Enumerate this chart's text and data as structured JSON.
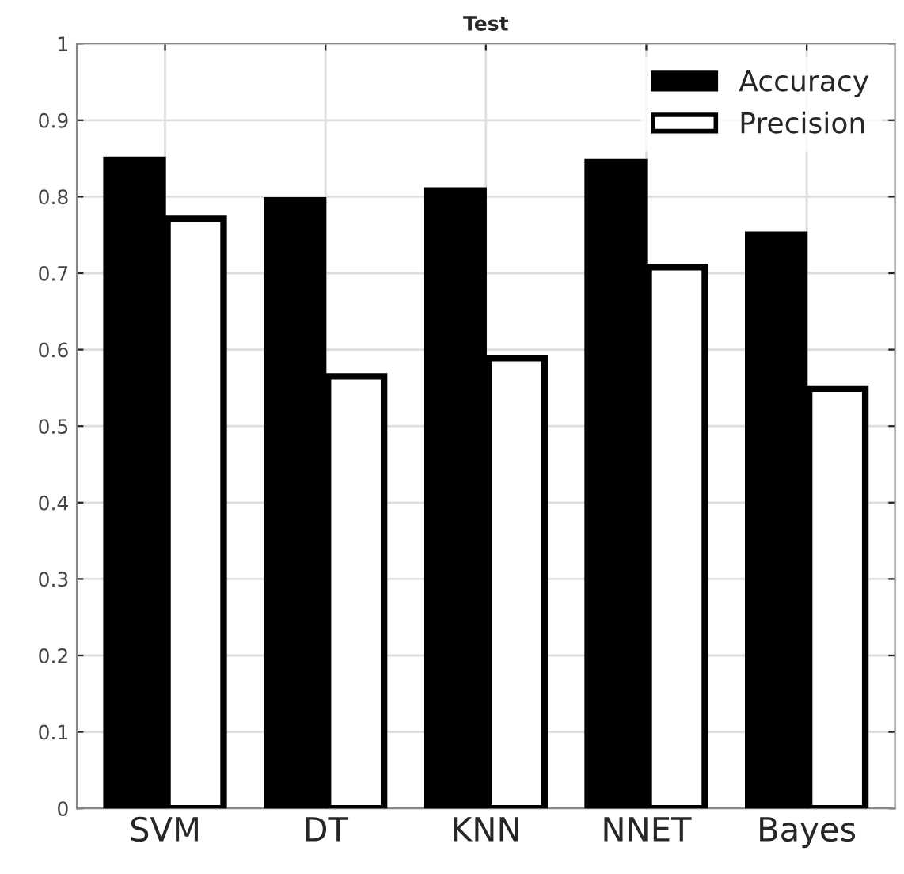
{
  "chart_data": {
    "type": "bar",
    "title": "Test",
    "categories": [
      "SVM",
      "DT",
      "KNN",
      "NNET",
      "Bayes"
    ],
    "series": [
      {
        "name": "Accuracy",
        "color": "#000000",
        "values": [
          0.848,
          0.795,
          0.808,
          0.845,
          0.75
        ]
      },
      {
        "name": "Precision",
        "color": "#ffffff",
        "values": [
          0.771,
          0.565,
          0.589,
          0.708,
          0.549
        ]
      }
    ],
    "ylim": [
      0,
      1
    ],
    "yticks": [
      0,
      0.1,
      0.2,
      0.3,
      0.4,
      0.5,
      0.6,
      0.7,
      0.8,
      0.9,
      1
    ],
    "grid": true,
    "legend": "top right"
  }
}
